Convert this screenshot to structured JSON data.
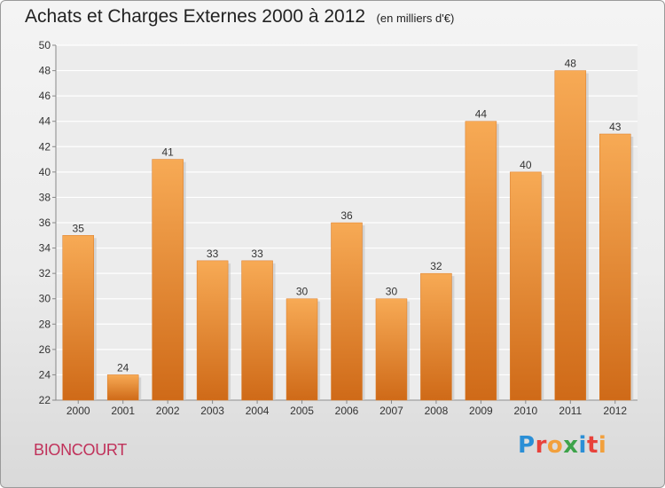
{
  "header": {
    "title": "Achats et Charges Externes 2000 à 2012",
    "subtitle": "(en milliers d'€)"
  },
  "footer": {
    "commune": "BIONCOURT",
    "brand": {
      "letters": [
        "P",
        "r",
        "o",
        "x",
        "i",
        "t",
        "i"
      ],
      "colors": [
        "#2b8fd6",
        "#e8423b",
        "#f2a03c",
        "#3da34a",
        "#2b8fd6",
        "#e8423b",
        "#f2a03c"
      ]
    }
  },
  "chart_data": {
    "type": "bar",
    "title": "Achats et Charges Externes 2000 à 2012",
    "subtitle": "(en milliers d'€)",
    "categories": [
      "2000",
      "2001",
      "2002",
      "2003",
      "2004",
      "2005",
      "2006",
      "2007",
      "2008",
      "2009",
      "2010",
      "2011",
      "2012"
    ],
    "values": [
      35,
      24,
      41,
      33,
      33,
      30,
      36,
      30,
      32,
      44,
      40,
      48,
      43
    ],
    "ylim": [
      22,
      50
    ],
    "yticks": [
      22,
      24,
      26,
      28,
      30,
      32,
      34,
      36,
      38,
      40,
      42,
      44,
      46,
      48,
      50
    ],
    "grid": true,
    "bar_color": "#f0963c",
    "bar_color_dark": "#cf6a18"
  }
}
